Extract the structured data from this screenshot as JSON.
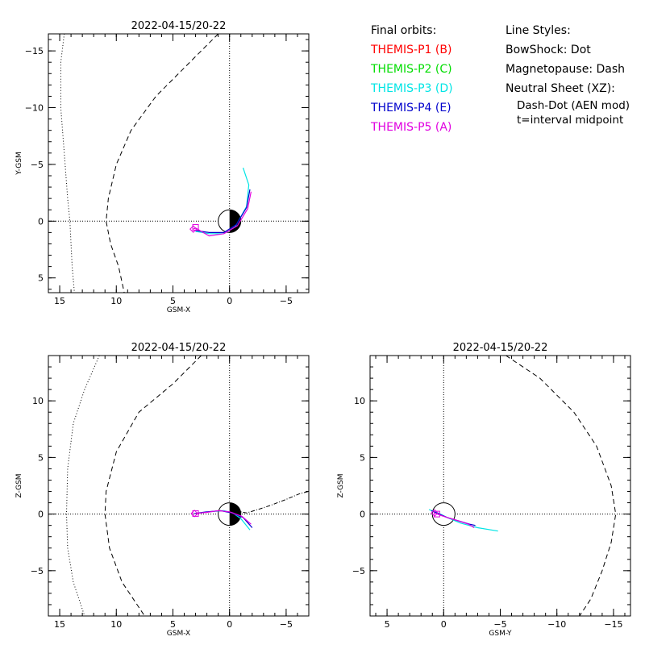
{
  "legend": {
    "orbits_heading": "Final orbits:",
    "probes": [
      {
        "label": "THEMIS-P1 (B)",
        "color": "#ff0000"
      },
      {
        "label": "THEMIS-P2 (C)",
        "color": "#00dd00"
      },
      {
        "label": "THEMIS-P3 (D)",
        "color": "#00e5e5"
      },
      {
        "label": "THEMIS-P4 (E)",
        "color": "#0000cc"
      },
      {
        "label": "THEMIS-P5 (A)",
        "color": "#e000e0"
      }
    ],
    "styles_heading": "Line Styles:",
    "styles": [
      "BowShock: Dot",
      "Magnetopause: Dash",
      "Neutral Sheet (XZ):",
      "Dash-Dot (AEN mod)",
      "t=interval midpoint"
    ]
  },
  "chart_data": [
    {
      "type": "line",
      "title": "2022-04-15/20-22",
      "xlabel": "GSM-X",
      "ylabel": "Y-GSM",
      "xlim": [
        16,
        -7
      ],
      "ylim": [
        6.3,
        -16.5
      ],
      "xticks": [
        15,
        10,
        5,
        0,
        -5
      ],
      "yticks": [
        -15,
        -10,
        -5,
        0,
        5
      ],
      "bow_shock": [
        [
          14.6,
          -16.5
        ],
        [
          14.9,
          -14
        ],
        [
          14.9,
          -10
        ],
        [
          14.6,
          -6
        ],
        [
          14.3,
          -2
        ],
        [
          14.1,
          0
        ],
        [
          14.0,
          2
        ],
        [
          13.9,
          4
        ],
        [
          13.7,
          6.3
        ]
      ],
      "magnetopause": [
        [
          1.0,
          -16.5
        ],
        [
          3.5,
          -14
        ],
        [
          6.5,
          -11
        ],
        [
          8.7,
          -8
        ],
        [
          10.0,
          -5
        ],
        [
          10.7,
          -2
        ],
        [
          10.9,
          0
        ],
        [
          10.5,
          2
        ],
        [
          9.8,
          4
        ],
        [
          9.3,
          6.3
        ]
      ],
      "earth_terminator": "dayside-left",
      "series": [
        {
          "name": "THEMIS-P3 (D)",
          "color": "#00e5e5",
          "points": [
            [
              -1.2,
              -4.7
            ],
            [
              -1.7,
              -3.2
            ],
            [
              -1.5,
              -1.3
            ],
            [
              -0.5,
              0.5
            ],
            [
              0.5,
              1.1
            ],
            [
              1.8,
              1.1
            ],
            [
              3.0,
              0.9
            ]
          ]
        },
        {
          "name": "THEMIS-P4 (E)",
          "color": "#0000cc",
          "points": [
            [
              -1.8,
              -2.8
            ],
            [
              -1.5,
              -1.2
            ],
            [
              -0.6,
              0.3
            ],
            [
              0.5,
              1.0
            ],
            [
              1.8,
              1.0
            ],
            [
              3.1,
              0.8
            ]
          ]
        },
        {
          "name": "THEMIS-P5 (A)",
          "color": "#e000e0",
          "points": [
            [
              -1.9,
              -2.6
            ],
            [
              -1.6,
              -1.1
            ],
            [
              -0.7,
              0.4
            ],
            [
              0.5,
              1.1
            ],
            [
              1.8,
              1.3
            ],
            [
              3.0,
              0.6
            ],
            [
              3.2,
              0.7
            ]
          ]
        }
      ],
      "markers": [
        {
          "shape": "diamond",
          "color": "#e000e0",
          "x": 3.2,
          "y": 0.7
        },
        {
          "shape": "square",
          "color": "#e000e0",
          "x": 3.0,
          "y": 0.55
        }
      ]
    },
    {
      "type": "line",
      "title": "2022-04-15/20-22",
      "xlabel": "GSM-X",
      "ylabel": "Z-GSM",
      "xlim": [
        16,
        -7
      ],
      "ylim": [
        -9,
        14
      ],
      "xticks": [
        15,
        10,
        5,
        0,
        -5
      ],
      "yticks": [
        10,
        5,
        0,
        -5
      ],
      "bow_shock": [
        [
          11.5,
          14
        ],
        [
          12.8,
          11
        ],
        [
          13.8,
          8
        ],
        [
          14.3,
          4
        ],
        [
          14.4,
          0
        ],
        [
          14.3,
          -3
        ],
        [
          13.8,
          -6
        ],
        [
          12.8,
          -9
        ]
      ],
      "magnetopause": [
        [
          2.5,
          14
        ],
        [
          5.0,
          11.5
        ],
        [
          8.0,
          9
        ],
        [
          10.0,
          5.5
        ],
        [
          10.9,
          2
        ],
        [
          11.0,
          0
        ],
        [
          10.6,
          -3
        ],
        [
          9.5,
          -6
        ],
        [
          7.5,
          -9
        ]
      ],
      "neutral_sheet": [
        [
          -0.5,
          0.3
        ],
        [
          -1.5,
          0.1
        ],
        [
          -2.5,
          0.4
        ],
        [
          -3.7,
          0.8
        ],
        [
          -5.0,
          1.3
        ],
        [
          -6.2,
          1.8
        ],
        [
          -7.0,
          2.0
        ]
      ],
      "earth_terminator": "dayside-left",
      "series": [
        {
          "name": "THEMIS-P3 (D)",
          "color": "#00e5e5",
          "points": [
            [
              -1.8,
              -1.4
            ],
            [
              -1.0,
              -0.4
            ],
            [
              -0.3,
              0.1
            ],
            [
              0.5,
              0.3
            ],
            [
              1.8,
              0.2
            ],
            [
              3.0,
              0.05
            ]
          ]
        },
        {
          "name": "THEMIS-P4 (E)",
          "color": "#0000cc",
          "points": [
            [
              -2.0,
              -1.2
            ],
            [
              -1.2,
              -0.3
            ],
            [
              -0.2,
              0.1
            ],
            [
              0.8,
              0.3
            ],
            [
              2.0,
              0.2
            ],
            [
              3.1,
              0.05
            ]
          ]
        },
        {
          "name": "THEMIS-P5 (A)",
          "color": "#e000e0",
          "points": [
            [
              -1.9,
              -0.9
            ],
            [
              -1.1,
              -0.2
            ],
            [
              0.0,
              0.2
            ],
            [
              1.0,
              0.3
            ],
            [
              2.0,
              0.15
            ],
            [
              3.0,
              0.05
            ]
          ]
        }
      ],
      "markers": [
        {
          "shape": "diamond",
          "color": "#e000e0",
          "x": 3.1,
          "y": 0.05
        },
        {
          "shape": "square",
          "color": "#e000e0",
          "x": 3.0,
          "y": 0.05
        }
      ]
    },
    {
      "type": "line",
      "title": "2022-04-15/20-22",
      "xlabel": "GSM-Y",
      "ylabel": "Z-GSM",
      "xlim": [
        6.5,
        -16.5
      ],
      "ylim": [
        -9,
        14
      ],
      "xticks": [
        5,
        0,
        -5,
        -10,
        -15
      ],
      "yticks": [
        10,
        5,
        0,
        -5
      ],
      "magnetopause": [
        [
          -5.5,
          14
        ],
        [
          -8.5,
          12
        ],
        [
          -11.5,
          9
        ],
        [
          -13.5,
          6
        ],
        [
          -14.8,
          2.5
        ],
        [
          -15.2,
          0
        ],
        [
          -14.8,
          -2.5
        ],
        [
          -14.0,
          -5
        ],
        [
          -13.0,
          -7.5
        ],
        [
          -12.0,
          -9
        ]
      ],
      "earth_terminator": "none",
      "series": [
        {
          "name": "THEMIS-P3 (D)",
          "color": "#00e5e5",
          "points": [
            [
              1.3,
              0.4
            ],
            [
              0.5,
              0.1
            ],
            [
              -0.3,
              -0.3
            ],
            [
              -1.5,
              -0.8
            ],
            [
              -3.0,
              -1.2
            ],
            [
              -4.8,
              -1.5
            ]
          ]
        },
        {
          "name": "THEMIS-P4 (E)",
          "color": "#0000cc",
          "points": [
            [
              1.1,
              0.3
            ],
            [
              0.4,
              0.0
            ],
            [
              -0.3,
              -0.3
            ],
            [
              -1.3,
              -0.6
            ],
            [
              -2.3,
              -0.9
            ],
            [
              -2.8,
              -1.0
            ]
          ]
        },
        {
          "name": "THEMIS-P5 (A)",
          "color": "#e000e0",
          "points": [
            [
              0.8,
              0.1
            ],
            [
              0.3,
              -0.1
            ],
            [
              -0.3,
              -0.3
            ],
            [
              -1.3,
              -0.6
            ],
            [
              -2.2,
              -0.9
            ],
            [
              -2.7,
              -1.2
            ]
          ]
        }
      ],
      "markers": [
        {
          "shape": "diamond",
          "color": "#e000e0",
          "x": 0.8,
          "y": 0.1
        },
        {
          "shape": "square",
          "color": "#e000e0",
          "x": 0.6,
          "y": 0.0
        }
      ]
    }
  ]
}
